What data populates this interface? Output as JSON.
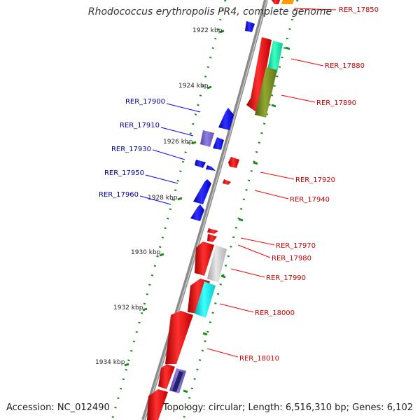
{
  "title": "Rhodococcus erythropolis PR4, complete genome",
  "footer": {
    "accession": "Accession: NC_012490",
    "summary": "Topology: circular; Length: 6,516,310 bp; Genes: 6,102"
  },
  "colors": {
    "forward": "#ff0000",
    "reverse": "#0000ff",
    "backbone": "#888888",
    "ticks": "#008000",
    "label_right": "#cc0000",
    "label_left": "#000099"
  },
  "scale_labels": [
    "1922 kbp",
    "1924 kbp",
    "1926 kbp",
    "1928 kbp",
    "1930 kbp",
    "1932 kbp",
    "1934 kbp"
  ],
  "genes_right": [
    "RER_17850",
    "RER_17880",
    "RER_17890",
    "RER_17920",
    "RER_17940",
    "RER_17970",
    "RER_17980",
    "RER_17990",
    "RER_18000",
    "RER_18010"
  ],
  "genes_left": [
    "RER_17900",
    "RER_17910",
    "RER_17930",
    "RER_17950",
    "RER_17960"
  ]
}
